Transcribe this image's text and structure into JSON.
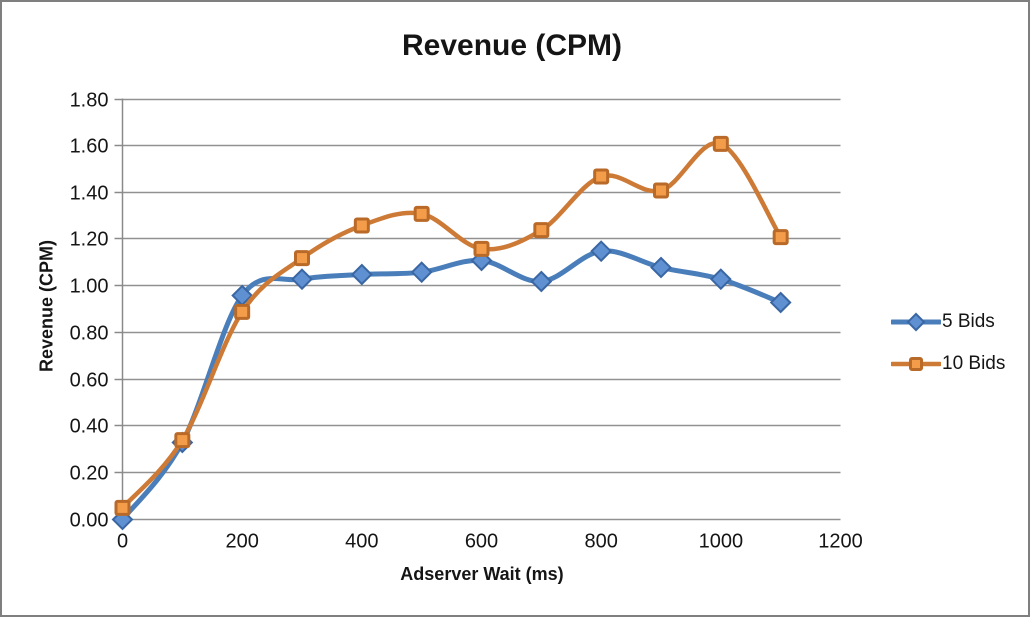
{
  "window": {
    "background": "#ffffff",
    "border_color": "#7f7f7f"
  },
  "palette": {
    "grid_color": "#919191",
    "axis_color": "#8a8a8a",
    "text_color": "#151515"
  },
  "chart_data": {
    "type": "line",
    "title": "Revenue (CPM)",
    "xlabel": "Adserver Wait (ms)",
    "ylabel": "Revenue (CPM)",
    "x": [
      0,
      100,
      200,
      300,
      400,
      500,
      600,
      700,
      800,
      900,
      1000,
      1100
    ],
    "series": [
      {
        "name": "5 Bids",
        "marker": "diamond",
        "line_color": "#4a7eba",
        "line_width": 5,
        "marker_fill": "#5f90d2",
        "marker_stroke": "#3a67a3",
        "values": [
          0.0,
          0.33,
          0.96,
          1.03,
          1.05,
          1.06,
          1.11,
          1.02,
          1.15,
          1.08,
          1.03,
          0.93
        ]
      },
      {
        "name": "10 Bids",
        "marker": "square",
        "line_color": "#cd7a36",
        "line_width": 4.5,
        "marker_fill": "#f39c4a",
        "marker_stroke": "#ba6a28",
        "values": [
          0.05,
          0.34,
          0.89,
          1.12,
          1.26,
          1.31,
          1.16,
          1.24,
          1.47,
          1.41,
          1.61,
          1.21
        ]
      }
    ],
    "xlim": [
      0,
      1200
    ],
    "ylim": [
      0,
      1.8
    ],
    "x_tick_step": 200,
    "y_tick_step": 0.2,
    "y_tick_decimals": 2,
    "grid": true,
    "smoothed_lines": true,
    "legend_position": "right"
  }
}
